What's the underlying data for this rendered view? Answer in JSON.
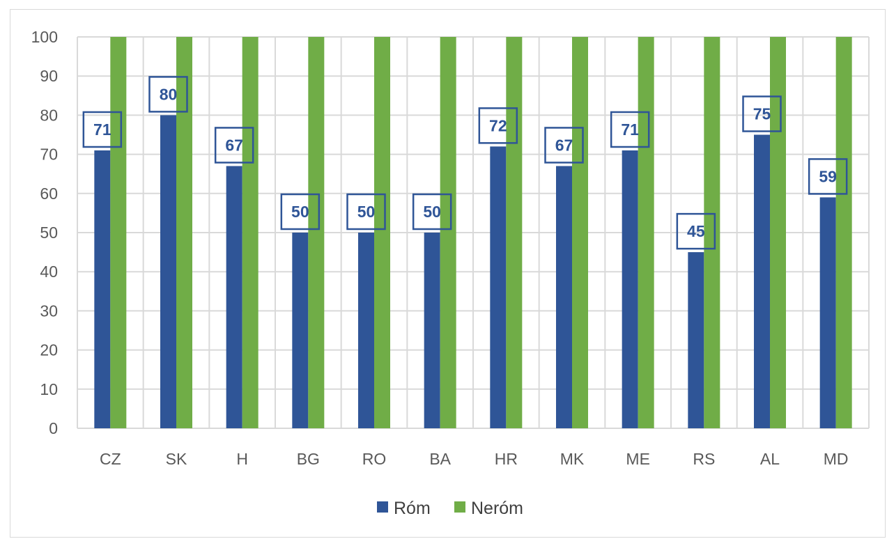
{
  "chart_data": {
    "type": "bar",
    "categories": [
      "CZ",
      "SK",
      "H",
      "BG",
      "RO",
      "BA",
      "HR",
      "MK",
      "ME",
      "RS",
      "AL",
      "MD"
    ],
    "series": [
      {
        "name": "Róm",
        "values": [
          71,
          80,
          67,
          50,
          50,
          50,
          72,
          67,
          71,
          45,
          75,
          59
        ],
        "color": "#2f5597",
        "data_labels": true
      },
      {
        "name": "Neróm",
        "values": [
          100,
          100,
          100,
          100,
          100,
          100,
          100,
          100,
          100,
          100,
          100,
          100
        ],
        "color": "#70ad47",
        "data_labels": false
      }
    ],
    "title": "",
    "xlabel": "",
    "ylabel": "",
    "ylim": [
      0,
      100
    ],
    "yticks": [
      0,
      10,
      20,
      30,
      40,
      50,
      60,
      70,
      80,
      90,
      100
    ],
    "grid": true,
    "legend": "bottom-center",
    "label_style": "boxed"
  }
}
